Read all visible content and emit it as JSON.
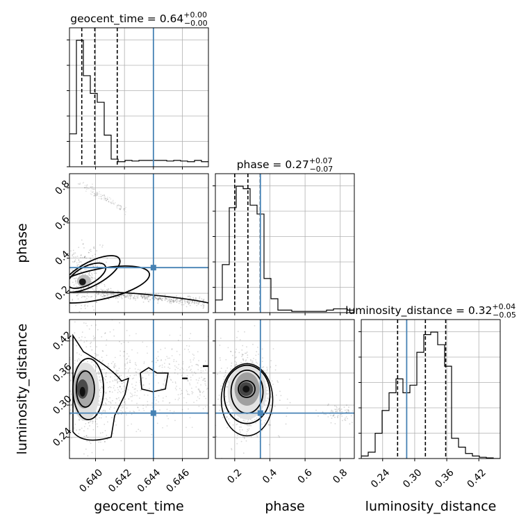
{
  "chart_data": {
    "type": "corner",
    "parameters": [
      "geocent_time",
      "phase",
      "luminosity_distance"
    ],
    "ranges": {
      "geocent_time": [
        0.6382,
        0.6478
      ],
      "phase": [
        0.09,
        0.88
      ],
      "luminosity_distance": [
        0.2,
        0.46
      ]
    },
    "truths": {
      "geocent_time": 0.644,
      "phase": 0.346,
      "luminosity_distance": 0.285
    },
    "titles": {
      "geocent_time": {
        "prefix": "geocent_time = 0.64",
        "plus": "+0.00",
        "minus": "−0.00"
      },
      "phase": {
        "prefix": "phase = 0.27",
        "plus": "+0.07",
        "minus": "−0.07"
      },
      "luminosity_distance": {
        "prefix": "luminosity_distance = 0.32",
        "plus": "+0.04",
        "minus": "−0.05"
      }
    },
    "quantiles": {
      "geocent_time": [
        0.63905,
        0.63995,
        0.6415
      ],
      "phase": [
        0.2,
        0.275,
        0.345
      ],
      "luminosity_distance": [
        0.268,
        0.32,
        0.358
      ]
    },
    "ticks": {
      "geocent_time": [
        "0.640",
        "0.642",
        "0.644",
        "0.646"
      ],
      "phase": [
        "0.2",
        "0.4",
        "0.6",
        "0.8"
      ],
      "luminosity_distance": [
        "0.24",
        "0.30",
        "0.36",
        "0.42"
      ]
    },
    "histograms": {
      "geocent_time": {
        "edges": [
          0.6382,
          0.63868,
          0.63916,
          0.63964,
          0.64012,
          0.6406,
          0.64108,
          0.64156,
          0.64204,
          0.64252,
          0.643,
          0.64348,
          0.64396,
          0.64444,
          0.64492,
          0.6454,
          0.64588,
          0.64636,
          0.64684,
          0.64732,
          0.6478
        ],
        "counts": [
          0.26,
          1.0,
          0.72,
          0.58,
          0.51,
          0.25,
          0.06,
          0.04,
          0.05,
          0.045,
          0.05,
          0.05,
          0.05,
          0.05,
          0.045,
          0.05,
          0.045,
          0.04,
          0.05,
          0.04
        ]
      },
      "phase": {
        "edges": [
          0.09,
          0.1295,
          0.169,
          0.2085,
          0.248,
          0.2875,
          0.327,
          0.3665,
          0.406,
          0.4455,
          0.485,
          0.5245,
          0.564,
          0.6035,
          0.643,
          0.6825,
          0.722,
          0.7615,
          0.801,
          0.8405,
          0.88
        ],
        "counts": [
          0.1,
          0.38,
          0.83,
          1.0,
          0.98,
          0.85,
          0.78,
          0.27,
          0.11,
          0.02,
          0.02,
          0.01,
          0.01,
          0.01,
          0.01,
          0.01,
          0.02,
          0.03,
          0.03,
          0.02
        ]
      },
      "luminosity_distance": {
        "edges": [
          0.2,
          0.213,
          0.226,
          0.239,
          0.252,
          0.265,
          0.278,
          0.291,
          0.304,
          0.317,
          0.33,
          0.343,
          0.356,
          0.369,
          0.382,
          0.395,
          0.408,
          0.421,
          0.434,
          0.447,
          0.46
        ],
        "counts": [
          0.02,
          0.05,
          0.2,
          0.38,
          0.52,
          0.63,
          0.52,
          0.58,
          0.84,
          0.98,
          1.0,
          0.9,
          0.73,
          0.16,
          0.09,
          0.04,
          0.02,
          0.01,
          0.005,
          0.0
        ]
      }
    },
    "samples_2d": {
      "phase_vs_geocent_time": {
        "clusters": [
          {
            "x": [
              0.6385,
              0.6405
            ],
            "y": [
              0.22,
              0.4
            ]
          },
          {
            "x": [
              0.64,
              0.6476
            ],
            "y": [
              0.14,
              0.21
            ]
          },
          {
            "x": [
              0.6388,
              0.6418
            ],
            "y": [
              0.68,
              0.86
            ]
          }
        ]
      },
      "luminosity_distance_vs_geocent_time": {
        "clusters": [
          {
            "x": [
              0.6383,
              0.6412
            ],
            "y": [
              0.23,
              0.44
            ]
          },
          {
            "x": [
              0.6412,
              0.6476
            ],
            "y": [
              0.27,
              0.42
            ]
          }
        ]
      },
      "luminosity_distance_vs_phase": {
        "clusters": [
          {
            "x": [
              0.14,
              0.43
            ],
            "y": [
              0.23,
              0.43
            ]
          },
          {
            "x": [
              0.72,
              0.85
            ],
            "y": [
              0.27,
              0.3
            ]
          }
        ]
      }
    },
    "grid": true,
    "truth_color": "#4682b4"
  }
}
